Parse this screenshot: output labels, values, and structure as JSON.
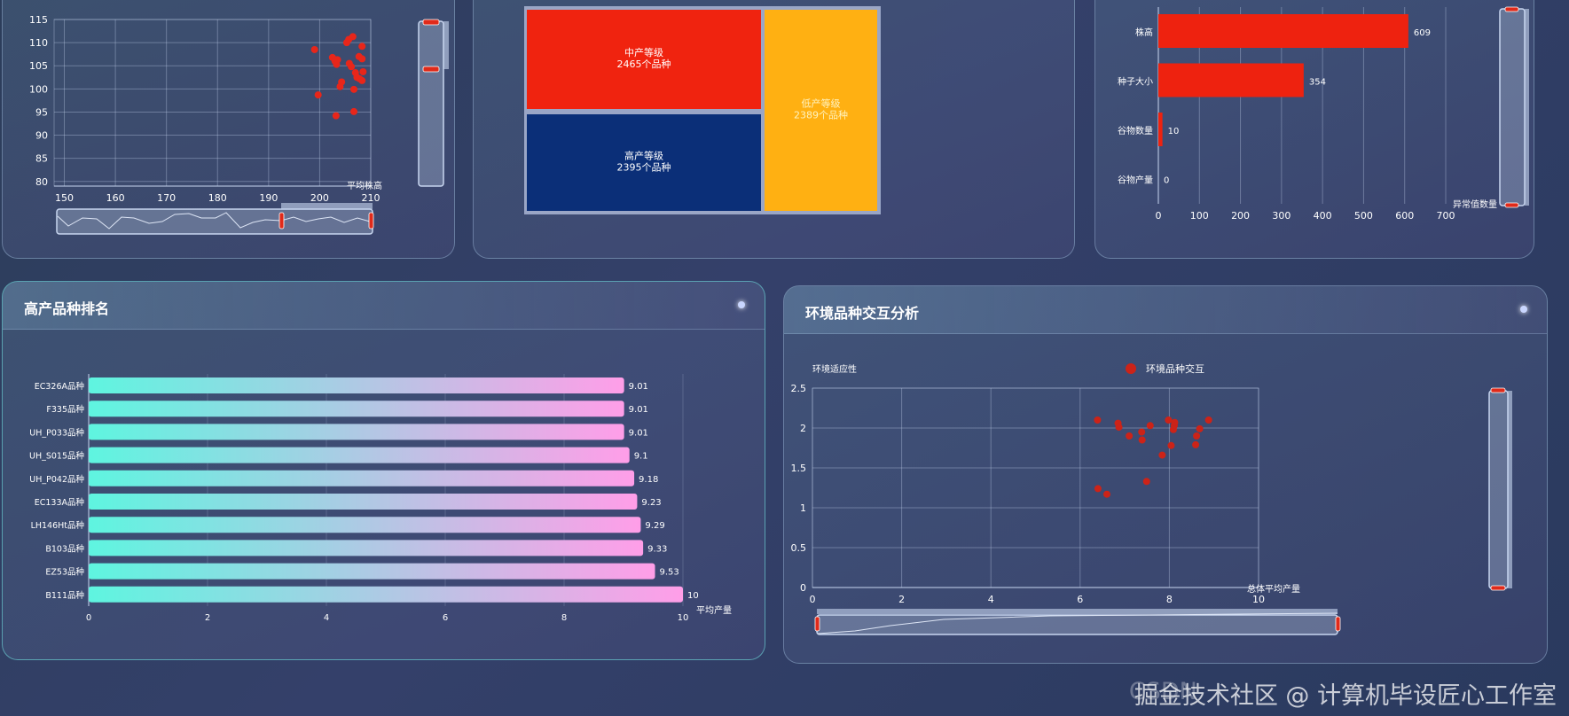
{
  "panels": {
    "top_ranking_title": "高产品种排名",
    "interaction_title": "环境品种交互分析"
  },
  "watermark": {
    "text": "掘金技术社区 @ 计算机毕设匠心工作室",
    "ghost": "CSDN"
  },
  "chart_data": [
    {
      "id": "height-yield-scatter",
      "type": "scatter",
      "xlabel": "平均株高",
      "ylabel": "",
      "xlim": [
        148,
        210
      ],
      "ylim": [
        79,
        115
      ],
      "xticks": [
        150,
        160,
        170,
        180,
        190,
        200,
        210
      ],
      "yticks": [
        80,
        85,
        90,
        95,
        100,
        105,
        110,
        115
      ],
      "color": "#e8261a",
      "points": [
        [
          199,
          108.5
        ],
        [
          199.7,
          98.7
        ],
        [
          202.5,
          106.8
        ],
        [
          203,
          106
        ],
        [
          203.3,
          105.3
        ],
        [
          203.5,
          106.3
        ],
        [
          204,
          100.5
        ],
        [
          204.3,
          101.5
        ],
        [
          203.2,
          94.2
        ],
        [
          205.3,
          110
        ],
        [
          205.7,
          110.7
        ],
        [
          206.5,
          111.3
        ],
        [
          208.3,
          109.2
        ],
        [
          205.8,
          105.5
        ],
        [
          206.2,
          104.8
        ],
        [
          207,
          103.5
        ],
        [
          207.3,
          102.5
        ],
        [
          207.7,
          107
        ],
        [
          208.3,
          106.5
        ],
        [
          208.5,
          103.7
        ],
        [
          208.3,
          101.8
        ],
        [
          206.7,
          99.9
        ],
        [
          206.7,
          95.1
        ],
        [
          207.8,
          102.2
        ]
      ]
    },
    {
      "id": "yield-level-treemap",
      "type": "treemap",
      "items": [
        {
          "name": "中产等级",
          "value": 2465,
          "label": "2465个品种",
          "color": "#f0230f"
        },
        {
          "name": "高产等级",
          "value": 2395,
          "label": "2395个品种",
          "color": "#0b2f78"
        },
        {
          "name": "低产等级",
          "value": 2389,
          "label": "2389个品种",
          "color": "#ffb012"
        }
      ]
    },
    {
      "id": "outlier-bar",
      "type": "bar",
      "orientation": "horizontal",
      "xlabel": "异常值数量",
      "xlim": [
        0,
        700
      ],
      "xticks": [
        0,
        100,
        200,
        300,
        400,
        500,
        600,
        700
      ],
      "categories": [
        "株高",
        "种子大小",
        "谷物数量",
        "谷物产量"
      ],
      "values": [
        609,
        354,
        10,
        0
      ],
      "color": "#ee220f"
    },
    {
      "id": "top-yield-bar",
      "type": "bar",
      "orientation": "horizontal",
      "xlabel": "平均产量",
      "xlim": [
        0,
        10
      ],
      "xticks": [
        0,
        2,
        4,
        6,
        8,
        10
      ],
      "categories": [
        "EC326A品种",
        "F335品种",
        "UH_P033品种",
        "UH_S015品种",
        "UH_P042品种",
        "EC133A品种",
        "LH146Ht品种",
        "B103品种",
        "EZ53品种",
        "B111品种"
      ],
      "values": [
        9.01,
        9.01,
        9.01,
        9.1,
        9.18,
        9.23,
        9.29,
        9.33,
        9.53,
        10
      ],
      "gradient": [
        "#5ef5e0",
        "#ff9ee8"
      ]
    },
    {
      "id": "env-interaction-scatter",
      "type": "scatter",
      "xlabel": "总体平均产量",
      "ylabel": "环境适应性",
      "legend": "环境品种交互",
      "xlim": [
        0,
        10
      ],
      "ylim": [
        0,
        2.5
      ],
      "xticks": [
        0,
        2,
        4,
        6,
        8,
        10
      ],
      "yticks": [
        0,
        0.5,
        1,
        1.5,
        2,
        2.5
      ],
      "color": "#cc2318",
      "points": [
        [
          6.39,
          2.1
        ],
        [
          6.4,
          1.24
        ],
        [
          6.6,
          1.17
        ],
        [
          6.85,
          2.06
        ],
        [
          6.87,
          2.01
        ],
        [
          7.1,
          1.9
        ],
        [
          7.38,
          1.95
        ],
        [
          7.39,
          1.85
        ],
        [
          7.49,
          1.33
        ],
        [
          7.57,
          2.03
        ],
        [
          7.84,
          1.66
        ],
        [
          7.98,
          2.1
        ],
        [
          8.04,
          1.78
        ],
        [
          8.09,
          1.98
        ],
        [
          8.11,
          2.03
        ],
        [
          8.12,
          2.07
        ],
        [
          8.59,
          1.79
        ],
        [
          8.61,
          1.9
        ],
        [
          8.68,
          1.99
        ],
        [
          8.88,
          2.1
        ]
      ]
    }
  ]
}
